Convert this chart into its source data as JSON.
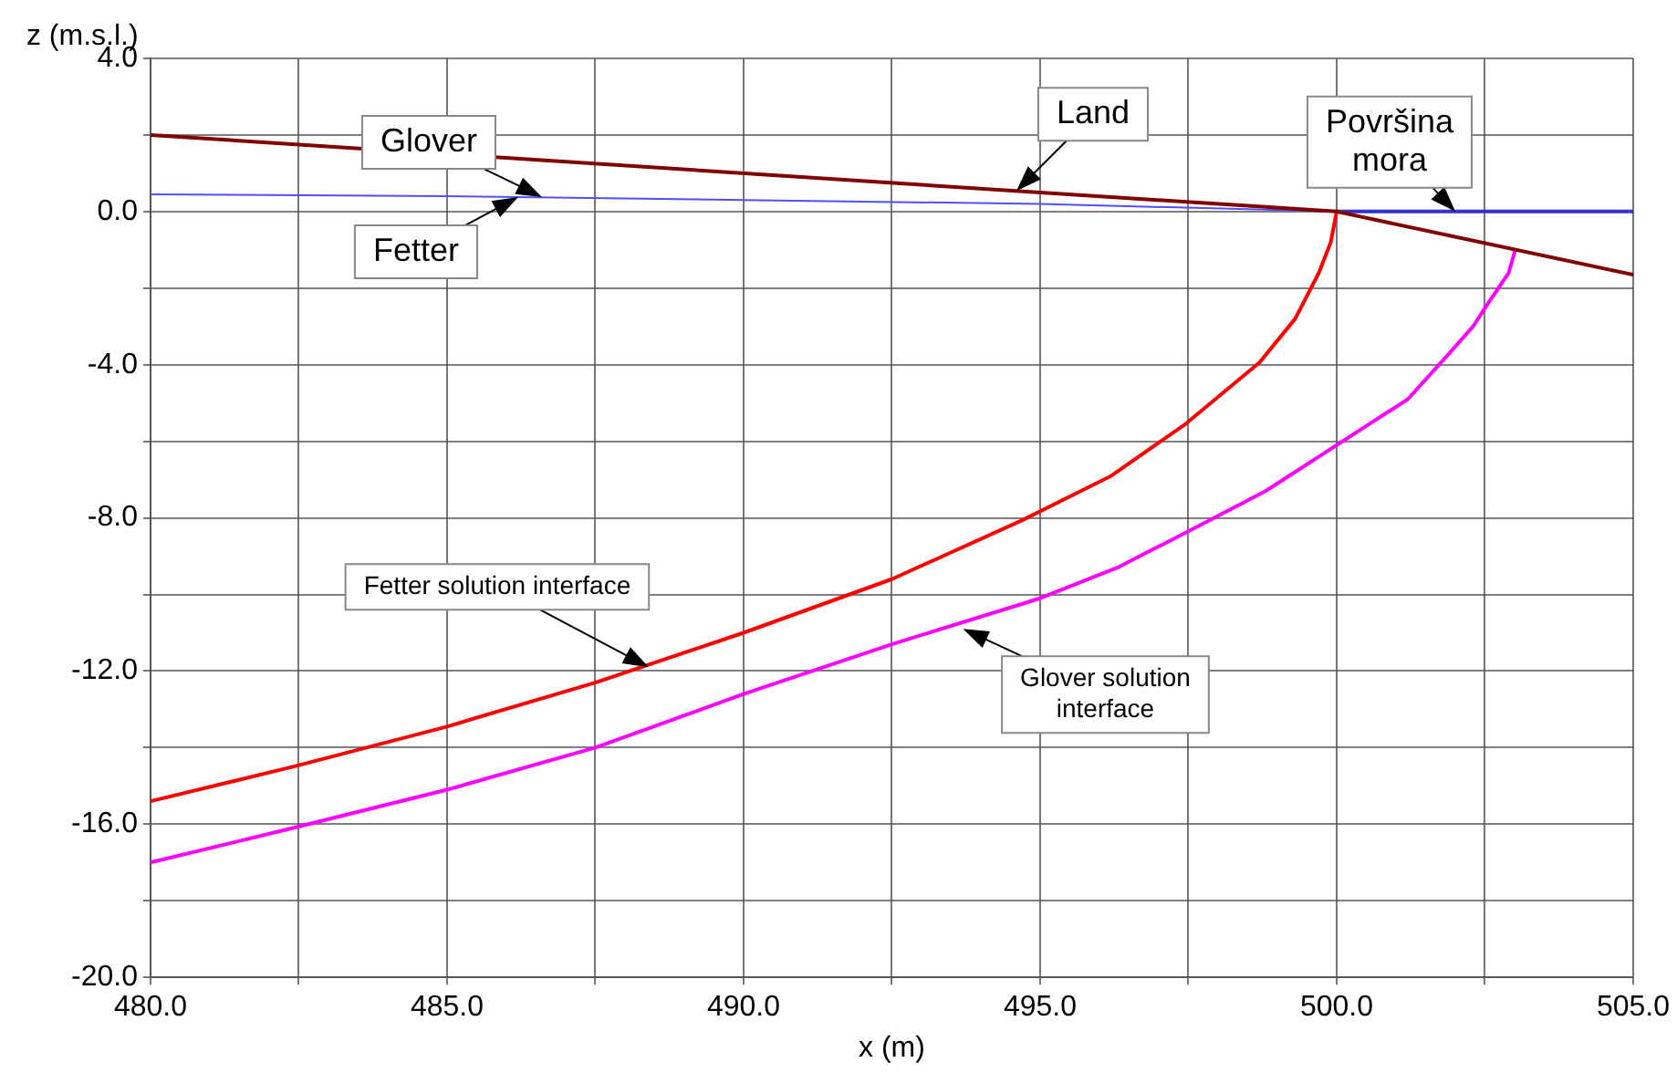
{
  "chart_data": {
    "type": "line",
    "xlabel": "x (m)",
    "ylabel": "z (m.s.l.)",
    "xlim": [
      480,
      505
    ],
    "ylim": [
      -20,
      4
    ],
    "xticks": [
      {
        "value": 480,
        "label": "480.0"
      },
      {
        "value": 482.5,
        "label": null
      },
      {
        "value": 485,
        "label": "485.0"
      },
      {
        "value": 487.5,
        "label": null
      },
      {
        "value": 490,
        "label": "490.0"
      },
      {
        "value": 492.5,
        "label": null
      },
      {
        "value": 495,
        "label": "495.0"
      },
      {
        "value": 497.5,
        "label": null
      },
      {
        "value": 500,
        "label": "500.0"
      },
      {
        "value": 502.5,
        "label": null
      },
      {
        "value": 505,
        "label": "505.0"
      }
    ],
    "yticks": [
      {
        "value": 4,
        "label": "4.0"
      },
      {
        "value": 2,
        "label": null
      },
      {
        "value": 0,
        "label": "0.0"
      },
      {
        "value": -2,
        "label": null
      },
      {
        "value": -4,
        "label": "-4.0"
      },
      {
        "value": -6,
        "label": null
      },
      {
        "value": -8,
        "label": "-8.0"
      },
      {
        "value": -10,
        "label": null
      },
      {
        "value": -12,
        "label": "-12.0"
      },
      {
        "value": -14,
        "label": null
      },
      {
        "value": -16,
        "label": "-16.0"
      },
      {
        "value": -18,
        "label": null
      },
      {
        "value": -20,
        "label": "-20.0"
      }
    ],
    "grid": true,
    "legend": false,
    "marker": "none",
    "line_style": "solid",
    "series": [
      {
        "color": "#800000",
        "x": [
          480,
          500,
          505
        ],
        "values": [
          2.0,
          0,
          -1.65
        ]
      },
      {
        "color": "#5050ff",
        "x": [
          480,
          485,
          490,
          495,
          500
        ],
        "values": [
          0.45,
          0.4,
          0.3,
          0.2,
          0
        ]
      },
      {
        "color": "#3333cc",
        "x": [
          500,
          505
        ],
        "values": [
          0,
          0
        ]
      },
      {
        "color": "#ff0000",
        "x": [
          480,
          482.4,
          485,
          487.5,
          490,
          492.5,
          494.7,
          496.2,
          497.45,
          498.7,
          499.3,
          499.7,
          499.9,
          500
        ],
        "values": [
          -15.4,
          -14.5,
          -13.45,
          -12.3,
          -11.0,
          -9.6,
          -8.06,
          -6.9,
          -5.55,
          -3.94,
          -2.8,
          -1.6,
          -0.8,
          0
        ]
      },
      {
        "color": "#ff00ff",
        "x": [
          480,
          482.4,
          485,
          487.5,
          490,
          492.5,
          495,
          496.3,
          497.5,
          498.8,
          500,
          501.2,
          501.9,
          502.3,
          502.55,
          502.9,
          503
        ],
        "values": [
          -17.0,
          -16.1,
          -15.1,
          -14.0,
          -12.6,
          -11.3,
          -10.1,
          -9.3,
          -8.35,
          -7.3,
          -6.1,
          -4.9,
          -3.7,
          -3.0,
          -2.4,
          -1.6,
          -1.06
        ]
      }
    ],
    "annotations": [
      {
        "text": "Glover",
        "x": 486.6,
        "y": 0.38
      },
      {
        "text": "Land",
        "x": 494.6,
        "y": 0.54
      },
      {
        "text": "Površina mora",
        "x": 502.0,
        "y": 0
      },
      {
        "text": "Fetter",
        "x": 486.2,
        "y": 0.38
      },
      {
        "text": "Fetter solution interface",
        "x": 488.4,
        "y": -11.9
      },
      {
        "text": "Glover solution interface",
        "x": 493.7,
        "y": -10.9
      }
    ]
  }
}
